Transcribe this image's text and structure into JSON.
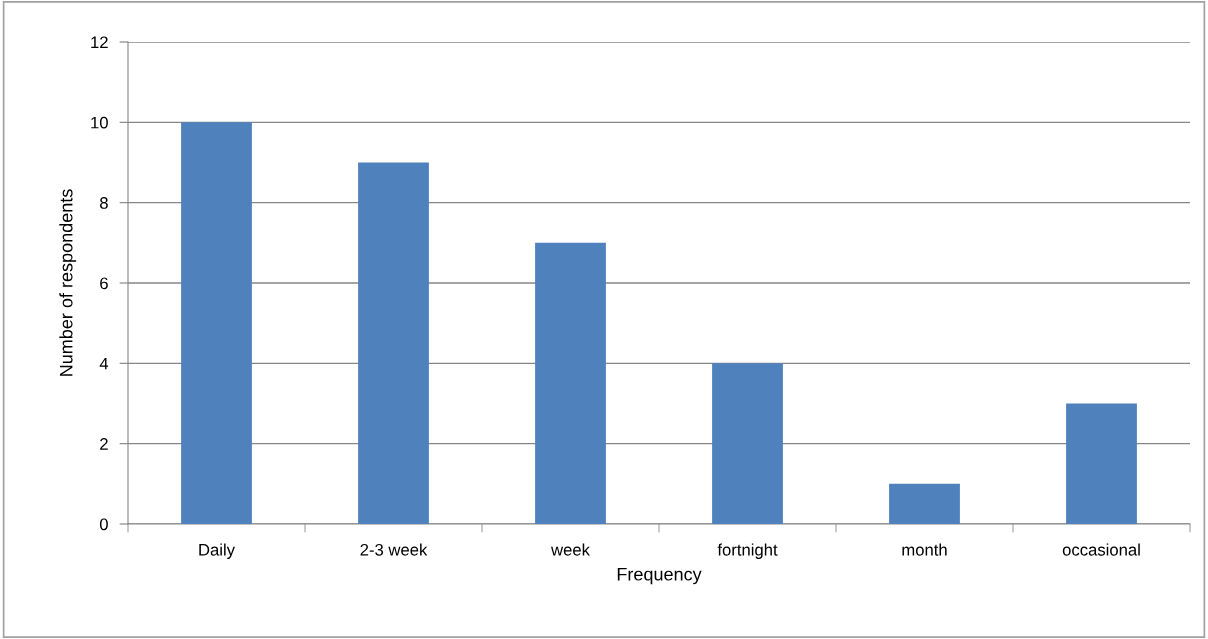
{
  "chart_data": {
    "type": "bar",
    "xlabel": "Frequency",
    "ylabel": "Number of respondents",
    "categories": [
      "Daily",
      "2-3 week",
      "week",
      "fortnight",
      "month",
      "occasional"
    ],
    "values": [
      10,
      9,
      7,
      4,
      1,
      3
    ],
    "color": "#4f81bd",
    "ylim": [
      0,
      12
    ],
    "yticks": [
      0,
      2,
      4,
      6,
      8,
      10,
      12
    ],
    "grid": "y"
  }
}
